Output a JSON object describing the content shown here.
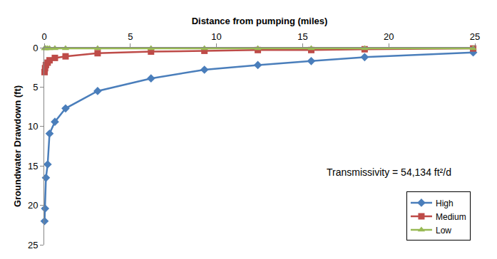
{
  "chart_data": {
    "type": "line",
    "x_label": "Distance from pumping (miles)",
    "y_label": "Groundwater Drawdown (ft)",
    "annotation": "Transmissivity = 54,134 ft²/d",
    "x": [
      0.02,
      0.05,
      0.1,
      0.2,
      0.31,
      0.62,
      1.24,
      3.1,
      6.2,
      9.3,
      12.4,
      15.5,
      18.6,
      24.9
    ],
    "series": [
      {
        "name": "High",
        "color": "#4a7ebb",
        "marker": "diamond",
        "values": [
          22.0,
          20.4,
          16.5,
          14.8,
          10.9,
          9.4,
          7.7,
          5.5,
          3.9,
          2.8,
          2.2,
          1.7,
          1.2,
          0.6
        ]
      },
      {
        "name": "Medium",
        "color": "#be4b48",
        "marker": "square",
        "values": [
          3.1,
          2.6,
          2.2,
          1.9,
          1.6,
          1.3,
          1.1,
          0.7,
          0.5,
          0.4,
          0.3,
          0.3,
          0.2,
          0.1
        ]
      },
      {
        "name": "Low",
        "color": "#98b954",
        "marker": "triangle-up",
        "values": [
          0.1,
          0.1,
          0.1,
          0.1,
          0.1,
          0.1,
          0.1,
          0.1,
          0.1,
          0.1,
          0.1,
          0.1,
          0.1,
          0.1
        ]
      }
    ],
    "xlim": [
      0,
      25
    ],
    "xticks": [
      0,
      5,
      10,
      15,
      20,
      25
    ],
    "ylim": [
      25,
      0
    ],
    "yticks": [
      0,
      5,
      10,
      15,
      20,
      25
    ],
    "grid": false,
    "legend": "lower right"
  }
}
